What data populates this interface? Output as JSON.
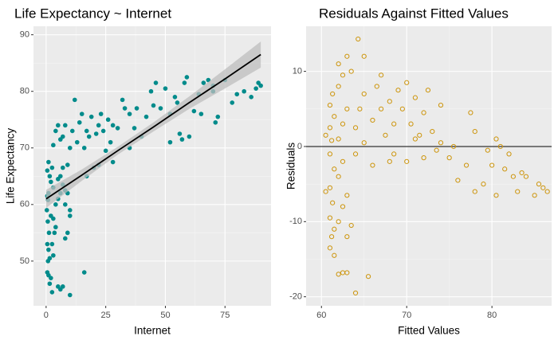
{
  "chart_data": [
    {
      "type": "scatter",
      "title": "Life Expectancy ~ Internet",
      "x_label": "Internet",
      "y_label": "Life Expectancy",
      "marker": "filled",
      "color": "#008b8b",
      "grid": true,
      "background": "#ebebeb",
      "xlim": [
        -5.3,
        94.3
      ],
      "ylim": [
        42.1,
        91.5
      ],
      "xticks": [
        0,
        25,
        50,
        75
      ],
      "yticks": [
        50,
        60,
        70,
        80,
        90
      ],
      "x": [
        0.5,
        0.8,
        1,
        0.3,
        0.7,
        1.2,
        0.5,
        1,
        0.8,
        1.5,
        0.5,
        1,
        2,
        1.5,
        2.5,
        0.5,
        1,
        1.5,
        2,
        2.5,
        3,
        2,
        3,
        3.5,
        2.5,
        3,
        4,
        4,
        5,
        5,
        6,
        6,
        7,
        7,
        8,
        8,
        9,
        10,
        5,
        6,
        7,
        10,
        10,
        9,
        8,
        16,
        3,
        4,
        5,
        6,
        7,
        8,
        9,
        10,
        11,
        12,
        13,
        14,
        15,
        16,
        17,
        18,
        19,
        20,
        21,
        22,
        23,
        24,
        25,
        26,
        27,
        28,
        30,
        32,
        33,
        35,
        37,
        38,
        40,
        42,
        44,
        46,
        48,
        50,
        52,
        54,
        55,
        56,
        58,
        59,
        60,
        62,
        64,
        66,
        68,
        70,
        71,
        72,
        75,
        78,
        80,
        83,
        86,
        88,
        89,
        90,
        17,
        22,
        28,
        35,
        45,
        52,
        57,
        65,
        70
      ],
      "values": [
        61.5,
        60.8,
        62,
        59,
        57,
        55,
        53,
        52,
        50,
        50.5,
        48,
        47.5,
        47,
        46,
        44.5,
        66,
        67.5,
        65,
        64,
        66.5,
        63,
        58,
        57.5,
        55,
        53,
        51,
        56,
        60,
        61,
        64.5,
        62,
        65,
        66.5,
        63.5,
        62.5,
        60,
        62,
        59,
        45.5,
        45,
        45.5,
        44,
        58,
        55,
        54,
        48,
        70.5,
        73,
        74,
        71.5,
        72,
        74,
        67,
        70,
        73,
        78.5,
        71,
        74.5,
        76,
        70,
        73,
        72,
        75.5,
        66.5,
        72.5,
        74,
        76,
        73,
        69.5,
        75,
        71,
        74,
        73.5,
        78.5,
        77,
        70,
        73.5,
        77,
        72,
        75.5,
        80,
        81.5,
        77,
        80.5,
        76,
        79,
        78,
        72.5,
        81.5,
        82.5,
        72,
        76.5,
        79.5,
        81.5,
        82,
        81,
        74.5,
        75.5,
        82,
        78,
        79.5,
        80,
        79,
        80.5,
        81.5,
        81,
        65,
        67,
        67.5,
        76,
        77.5,
        71,
        71.5,
        76,
        80
      ],
      "fit": {
        "color": "#000000",
        "band_color": "#bdbdbd",
        "x": [
          0,
          15,
          30,
          45,
          60,
          75,
          90
        ],
        "values": [
          61,
          65.2,
          69.5,
          73.7,
          78,
          82.2,
          86.5
        ],
        "lower": [
          59.4,
          64.2,
          68.8,
          72.9,
          76.9,
          80.5,
          84.2
        ],
        "upper": [
          62.6,
          66.2,
          70.2,
          74.5,
          79.1,
          83.9,
          88.8
        ]
      }
    },
    {
      "type": "scatter",
      "title": "Residuals Against Fitted Values",
      "x_label": "Fitted Values",
      "y_label": "Residuals",
      "marker": "open",
      "color": "#cd950c",
      "grid": true,
      "background": "#ebebeb",
      "xlim": [
        58.2,
        87.0
      ],
      "ylim": [
        -21.2,
        16.0
      ],
      "xticks": [
        60,
        70,
        80
      ],
      "yticks": [
        -20,
        -10,
        0,
        10
      ],
      "hline": 0,
      "x": [
        61,
        61.2,
        61.5,
        61,
        61.3,
        61,
        61.5,
        61,
        61.2,
        61,
        61.5,
        61,
        61.3,
        61.5,
        62,
        62.5,
        63,
        62,
        62.5,
        63,
        62,
        62.5,
        62,
        62.5,
        63,
        62,
        62.5,
        62,
        63,
        63.5,
        64,
        63.5,
        63,
        64,
        64,
        64.5,
        65,
        65,
        64.3,
        65,
        65.5,
        66,
        66,
        66.5,
        67,
        67,
        67.5,
        68,
        68.5,
        68.5,
        69,
        69.5,
        70,
        70,
        70.5,
        71,
        71,
        72,
        72.5,
        73,
        73.5,
        74,
        74,
        75,
        75.5,
        76,
        77,
        77.5,
        78,
        78,
        79,
        79.5,
        80,
        80.5,
        80.5,
        81,
        81.5,
        82,
        82.5,
        83,
        83.5,
        84,
        85,
        85.5,
        86,
        86.5,
        60.5,
        60.5,
        68,
        71.5,
        72
      ],
      "values": [
        -13.5,
        -12,
        -11,
        -9.5,
        -7.5,
        -5.5,
        -3,
        -1,
        0.8,
        2.5,
        4,
        5.5,
        7,
        -14.5,
        -17,
        -16.8,
        -16.8,
        -10,
        -8,
        -6.5,
        -4,
        -2,
        1,
        3,
        5,
        8,
        9.5,
        11,
        12,
        10,
        -19.5,
        -10.5,
        -12,
        -1,
        2.5,
        5,
        7,
        0.5,
        14.3,
        12,
        -17.3,
        3.5,
        -2.5,
        8,
        5,
        9.5,
        1.5,
        6,
        3,
        -1,
        7.5,
        5,
        8.5,
        -2,
        3,
        6.5,
        1,
        4.5,
        7.5,
        2,
        -0.5,
        5.5,
        0.5,
        -1.5,
        0,
        -4.5,
        -2.5,
        4.5,
        2,
        -6,
        -5,
        -0.5,
        -2.5,
        1,
        -6.5,
        0,
        -3,
        -1,
        -4,
        -6,
        -3.5,
        -4,
        -6.5,
        -5,
        -5.5,
        -6,
        -6,
        1.5,
        -2,
        1.5,
        -1.5
      ]
    }
  ]
}
